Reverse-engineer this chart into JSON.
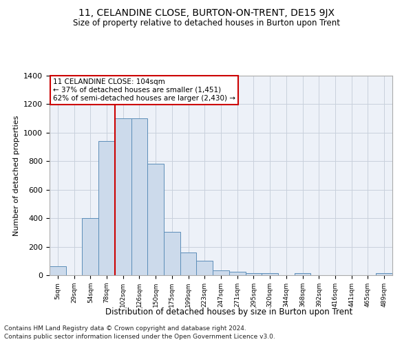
{
  "title": "11, CELANDINE CLOSE, BURTON-ON-TRENT, DE15 9JX",
  "subtitle": "Size of property relative to detached houses in Burton upon Trent",
  "xlabel": "Distribution of detached houses by size in Burton upon Trent",
  "ylabel": "Number of detached properties",
  "footnote1": "Contains HM Land Registry data © Crown copyright and database right 2024.",
  "footnote2": "Contains public sector information licensed under the Open Government Licence v3.0.",
  "annotation_title": "11 CELANDINE CLOSE: 104sqm",
  "annotation_line1": "← 37% of detached houses are smaller (1,451)",
  "annotation_line2": "62% of semi-detached houses are larger (2,430) →",
  "bar_labels": [
    "5sqm",
    "29sqm",
    "54sqm",
    "78sqm",
    "102sqm",
    "126sqm",
    "150sqm",
    "175sqm",
    "199sqm",
    "223sqm",
    "247sqm",
    "271sqm",
    "295sqm",
    "320sqm",
    "344sqm",
    "368sqm",
    "392sqm",
    "416sqm",
    "441sqm",
    "465sqm",
    "489sqm"
  ],
  "bar_values": [
    65,
    0,
    400,
    940,
    1100,
    1100,
    780,
    305,
    160,
    100,
    35,
    25,
    15,
    15,
    0,
    15,
    0,
    0,
    0,
    0,
    15
  ],
  "bar_color": "#ccdaeb",
  "bar_edge_color": "#5b8db8",
  "vline_x": 3.5,
  "vline_color": "#cc0000",
  "annotation_box_color": "#cc0000",
  "grid_color": "#c8d0dc",
  "bg_color": "#edf1f8",
  "ylim": [
    0,
    1400
  ],
  "yticks": [
    0,
    200,
    400,
    600,
    800,
    1000,
    1200,
    1400
  ]
}
